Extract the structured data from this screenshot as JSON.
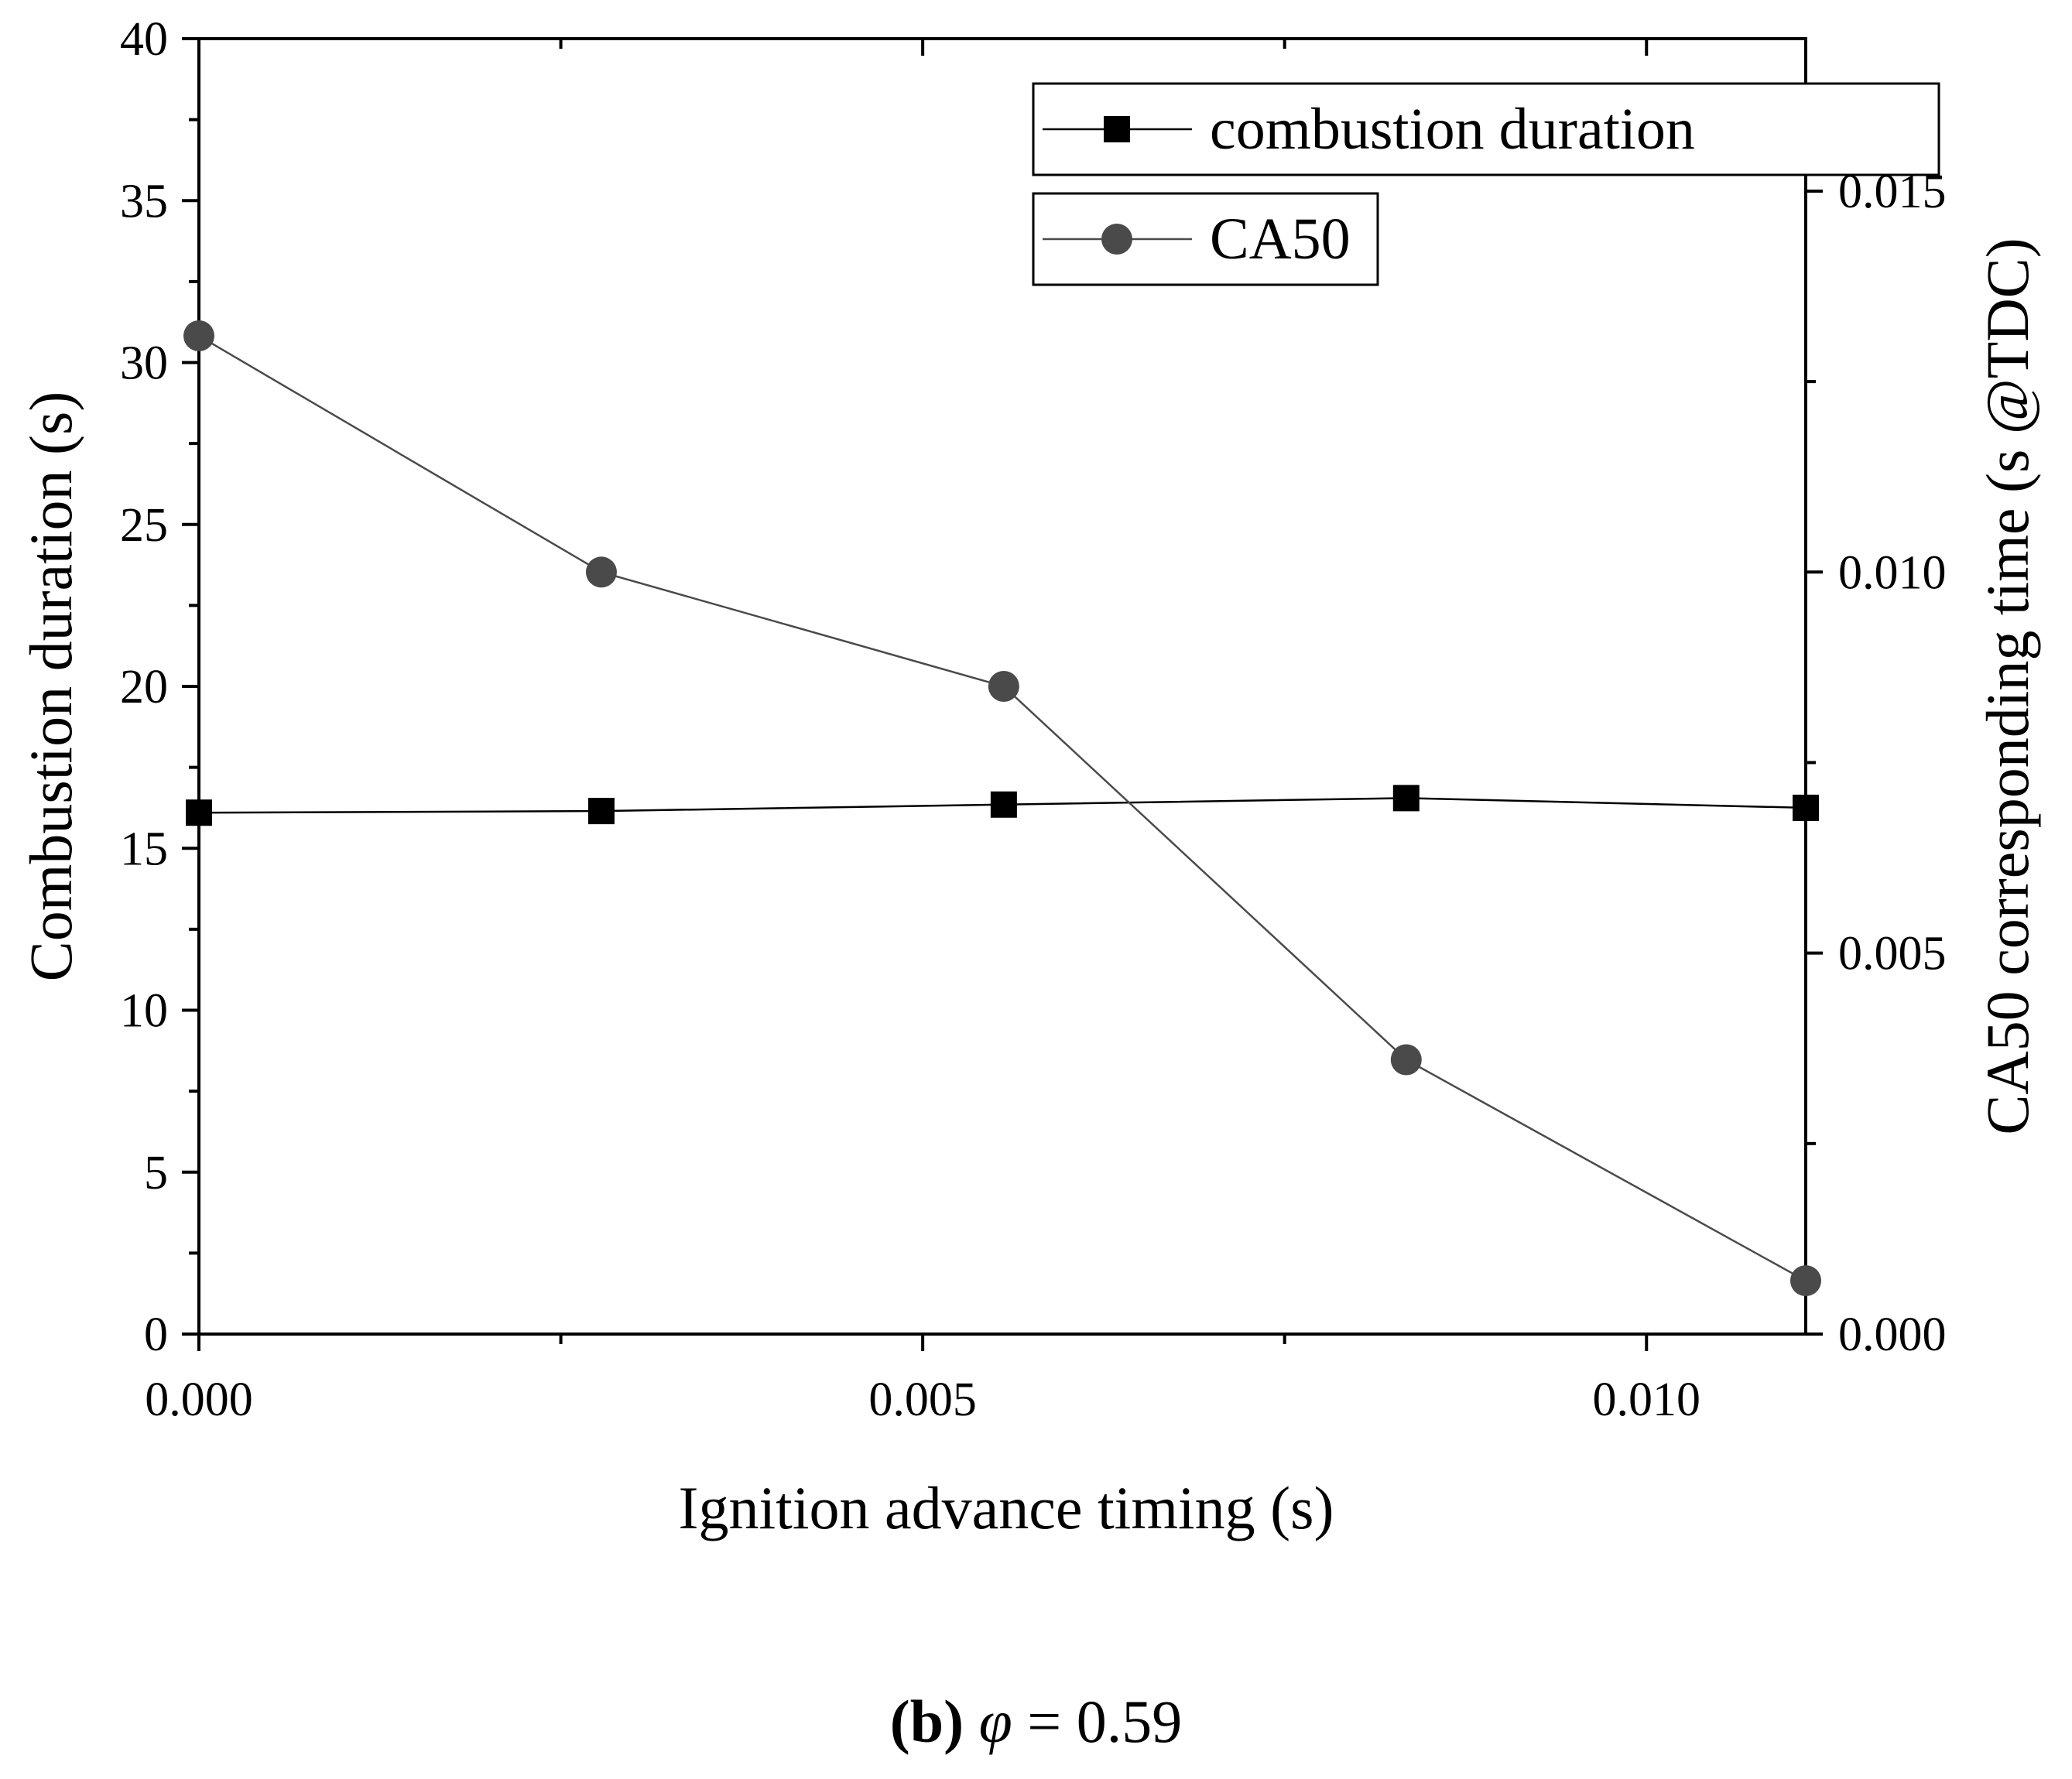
{
  "chart_data": {
    "type": "line",
    "title": "",
    "xlabel": "Ignition advance timing (s)",
    "ylabel": "Combustion duration (s)",
    "y2label": "CA50 corresponding time (s @TDC)",
    "xlim": [
      0,
      0.0111
    ],
    "ylim": [
      0,
      40
    ],
    "y2lim": [
      0,
      0.017
    ],
    "xticks": [
      "0.000",
      "0.005",
      "0.010"
    ],
    "xtick_values": [
      0,
      0.005,
      0.01
    ],
    "yticks": [
      "0",
      "5",
      "10",
      "15",
      "20",
      "25",
      "30",
      "35",
      "40"
    ],
    "ytick_values": [
      0,
      5,
      10,
      15,
      20,
      25,
      30,
      35,
      40
    ],
    "y2ticks": [
      "0.000",
      "0.005",
      "0.010",
      "0.015"
    ],
    "y2tick_values": [
      0,
      0.005,
      0.01,
      0.015
    ],
    "series": [
      {
        "name": "combustion duration",
        "axis": "left",
        "marker": "square",
        "color": "#000000",
        "x": [
          0,
          0.00278,
          0.00556,
          0.00834,
          0.0111
        ],
        "values": [
          16.1,
          16.15,
          16.35,
          16.55,
          16.25
        ]
      },
      {
        "name": "CA50",
        "axis": "right",
        "marker": "circle",
        "color": "#4a4a4a",
        "x": [
          0,
          0.00278,
          0.00556,
          0.00834,
          0.0111
        ],
        "values": [
          0.0131,
          0.01,
          0.0085,
          0.0036,
          0.0007
        ]
      }
    ],
    "legend_position": "top-right"
  },
  "caption": {
    "label": "(b)",
    "symbol": "φ",
    "equals": " = 0.59"
  }
}
